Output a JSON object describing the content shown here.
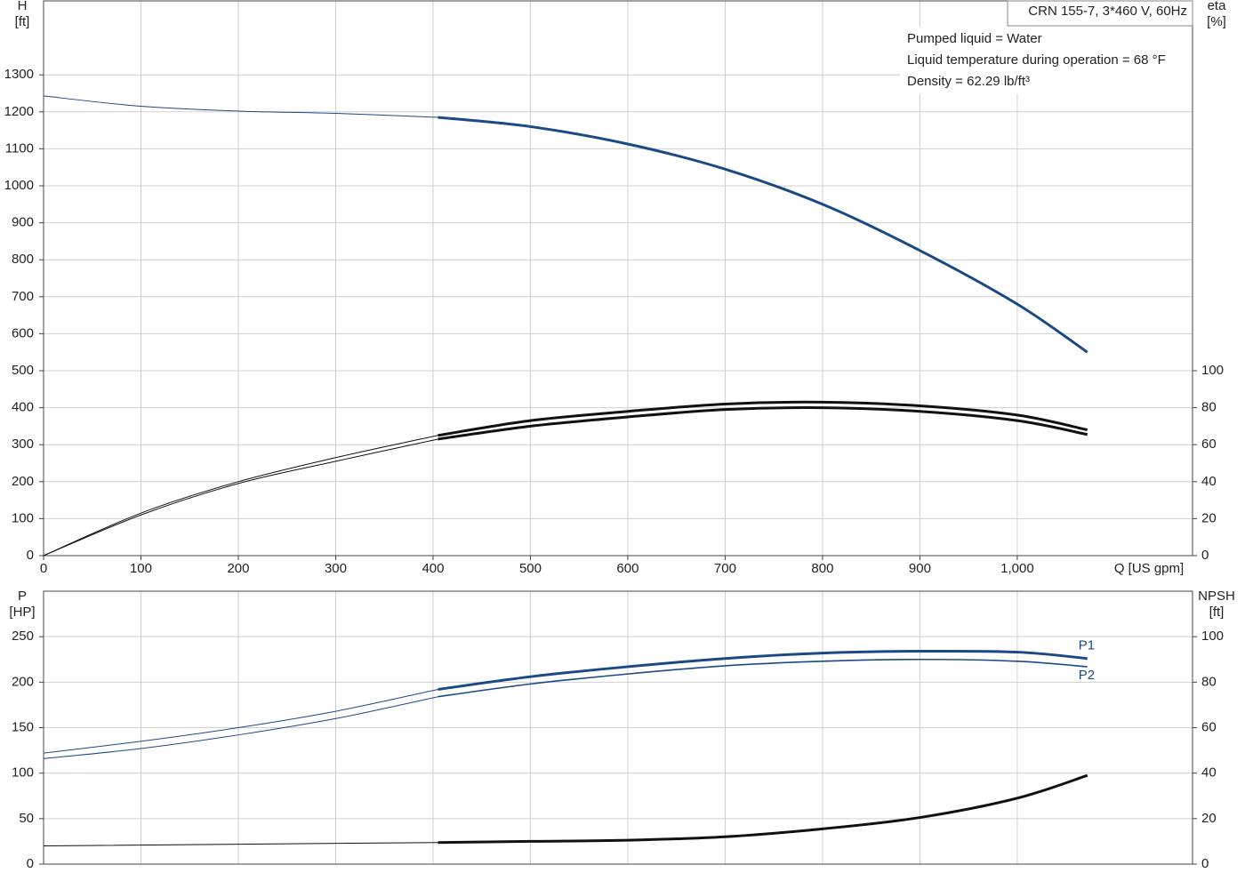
{
  "chart_data": [
    {
      "type": "line",
      "annotation_box": "CRN 155-7, 3*460 V, 60Hz",
      "notes": [
        "Pumped liquid = Water",
        "Liquid temperature during operation = 68 °F",
        "Density = 62.29 lb/ft³"
      ],
      "ylabel": [
        "H",
        "[ft]"
      ],
      "y2label": [
        "eta",
        "[%]"
      ],
      "xlabel": "Q [US gpm]",
      "xlim": [
        0,
        1180
      ],
      "xticks": [
        0,
        100,
        200,
        300,
        400,
        500,
        600,
        700,
        800,
        900,
        {
          "value": 1000,
          "label": "1,000"
        }
      ],
      "ylim": [
        0,
        1500
      ],
      "yticks": [
        0,
        100,
        200,
        300,
        400,
        500,
        600,
        700,
        800,
        900,
        1000,
        1100,
        1200,
        1300
      ],
      "y2lim": [
        0,
        300
      ],
      "y2ticks": [
        0,
        20,
        40,
        60,
        80,
        100
      ],
      "grid": true,
      "series": [
        {
          "color": "#1a4a85",
          "width": 1,
          "x": [
            0,
            100,
            200,
            300,
            405
          ],
          "values": [
            1243,
            1215,
            1202,
            1196,
            1185
          ]
        },
        {
          "color": "#1a4a85",
          "width": 3,
          "x": [
            405,
            500,
            600,
            700,
            800,
            900,
            1000,
            1072
          ],
          "values": [
            1185,
            1160,
            1113,
            1045,
            950,
            825,
            680,
            550
          ]
        },
        {
          "color": "#111111",
          "width": 1,
          "axis": "y2",
          "x": [
            0,
            100,
            200,
            300,
            405
          ],
          "values": [
            0,
            23,
            40,
            53,
            65
          ]
        },
        {
          "color": "#111111",
          "width": 3,
          "axis": "y2",
          "x": [
            405,
            500,
            600,
            700,
            800,
            900,
            1000,
            1072
          ],
          "values": [
            65,
            73,
            78,
            82,
            83,
            81,
            76,
            68
          ]
        },
        {
          "color": "#111111",
          "width": 1,
          "axis": "y2",
          "x": [
            0,
            100,
            200,
            300,
            405
          ],
          "values": [
            0,
            22,
            39,
            51,
            63
          ]
        },
        {
          "color": "#111111",
          "width": 3,
          "axis": "y2",
          "x": [
            405,
            500,
            600,
            700,
            800,
            900,
            1000,
            1072
          ],
          "values": [
            63,
            70,
            75,
            79,
            80,
            78,
            73,
            65.5
          ]
        }
      ]
    },
    {
      "type": "line",
      "ylabel": [
        "P",
        "[HP]"
      ],
      "y2label": [
        "NPSH",
        "[ft]"
      ],
      "xlim": [
        0,
        1180
      ],
      "ylim": [
        0,
        300
      ],
      "yticks": [
        0,
        50,
        100,
        150,
        200,
        250
      ],
      "y2lim": [
        0,
        120
      ],
      "y2ticks": [
        0,
        20,
        40,
        60,
        80,
        100
      ],
      "grid": true,
      "series": [
        {
          "color": "#1a4a85",
          "width": 1,
          "x": [
            0,
            100,
            200,
            300,
            405
          ],
          "values": [
            122,
            135,
            150,
            168,
            192
          ]
        },
        {
          "name": "P1",
          "color": "#1a4a85",
          "width": 3,
          "x": [
            405,
            500,
            600,
            700,
            800,
            900,
            1000,
            1072
          ],
          "values": [
            192,
            206,
            217,
            226,
            232,
            234,
            233,
            226
          ]
        },
        {
          "color": "#1a4a85",
          "width": 1,
          "x": [
            0,
            100,
            200,
            300,
            405
          ],
          "values": [
            116,
            127,
            142,
            160,
            184
          ]
        },
        {
          "name": "P2",
          "color": "#1a4a85",
          "width": 1.6,
          "x": [
            405,
            500,
            600,
            700,
            800,
            900,
            1000,
            1072
          ],
          "values": [
            184,
            198,
            209,
            218,
            223,
            225,
            223,
            217
          ]
        },
        {
          "color": "#111111",
          "width": 1,
          "axis": "y2",
          "x": [
            0,
            405
          ],
          "values": [
            8,
            9.5
          ]
        },
        {
          "color": "#111111",
          "width": 3,
          "axis": "y2",
          "x": [
            405,
            500,
            600,
            700,
            800,
            900,
            1000,
            1072
          ],
          "values": [
            9.5,
            10,
            10.5,
            12,
            15.5,
            20.5,
            29,
            39
          ]
        }
      ]
    }
  ]
}
